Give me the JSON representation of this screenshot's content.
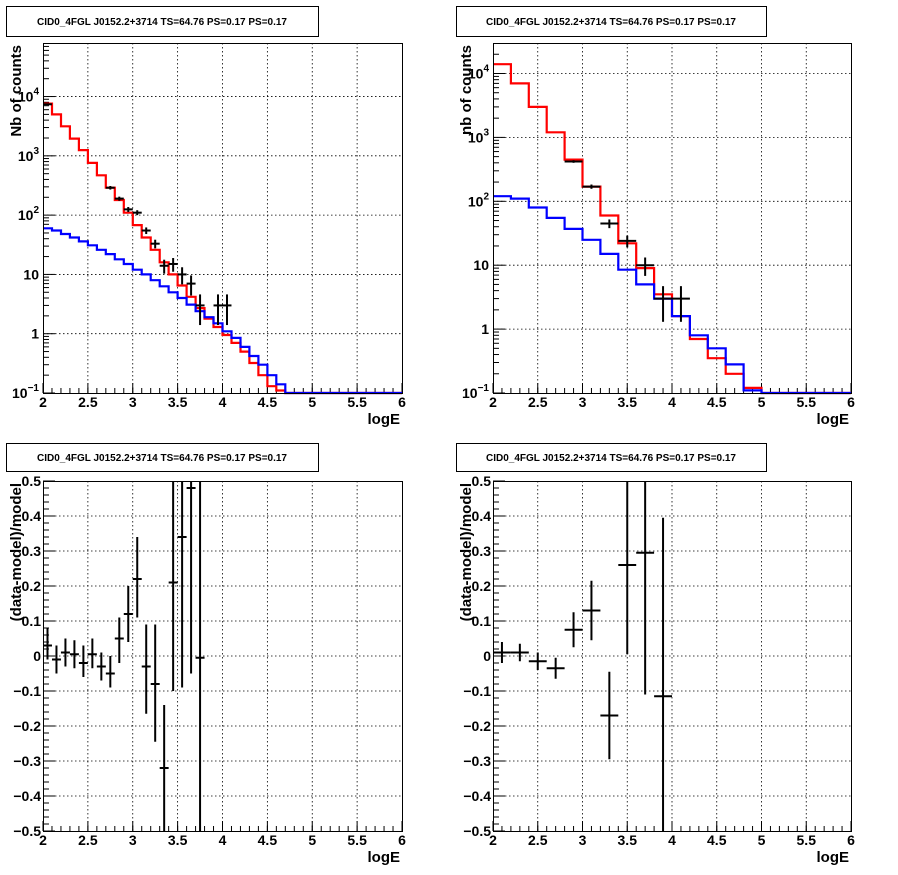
{
  "chart_data": [
    {
      "type": "line",
      "title": "CID0_4FGL J0152.2+3714 TS=64.76 PS=0.17 PS=0.17",
      "xlabel": "logE",
      "ylabel": "Nb of counts",
      "yscale": "log",
      "xlim": [
        2,
        6
      ],
      "ylim": [
        0.1,
        80000
      ],
      "grid": true,
      "xticks": [
        "2",
        "2.5",
        "3",
        "3.5",
        "4",
        "4.5",
        "5",
        "5.5",
        "6"
      ],
      "yticks": [
        {
          "v": 0.1,
          "base": "10",
          "exp": "−1"
        },
        {
          "v": 1,
          "label": "1"
        },
        {
          "v": 10,
          "label": "10"
        },
        {
          "v": 100,
          "base": "10",
          "exp": "2"
        },
        {
          "v": 1000,
          "base": "10",
          "exp": "3"
        },
        {
          "v": 10000,
          "base": "10",
          "exp": "4"
        }
      ],
      "bin_edges": [
        2.0,
        2.1,
        2.2,
        2.3,
        2.4,
        2.5,
        2.6,
        2.7,
        2.8,
        2.9,
        3.0,
        3.1,
        3.2,
        3.3,
        3.4,
        3.5,
        3.6,
        3.7,
        3.8,
        3.9,
        4.0,
        4.1,
        4.2,
        4.3,
        4.4,
        4.5,
        4.6,
        4.7,
        4.8,
        4.9,
        5.0,
        5.1,
        5.2,
        5.3,
        5.4,
        5.5,
        5.6,
        5.7,
        5.8,
        5.9,
        6.0
      ],
      "series": [
        {
          "color": "#ff0000",
          "values": [
            7600,
            5000,
            3150,
            1950,
            1250,
            760,
            470,
            290,
            180,
            110,
            68,
            42,
            26,
            16,
            10,
            6.5,
            4.2,
            2.7,
            1.8,
            1.3,
            0.95,
            0.7,
            0.5,
            0.32,
            0.2,
            0.13,
            0.11,
            0.1,
            0.1,
            0.1,
            0.1,
            0.1,
            0.1,
            0.1,
            0.1,
            0.1,
            0.1,
            0.1,
            0.1,
            0.1
          ]
        },
        {
          "color": "#0000ff",
          "values": [
            60,
            55,
            48,
            42,
            36,
            31,
            26,
            22,
            18,
            15,
            12,
            10,
            8,
            6.3,
            5,
            4,
            3.1,
            2.4,
            1.9,
            1.5,
            1.1,
            0.85,
            0.6,
            0.42,
            0.3,
            0.2,
            0.14,
            0.1,
            0.1,
            0.1,
            0.1,
            0.1,
            0.1,
            0.1,
            0.1,
            0.1,
            0.1,
            0.1,
            0.1,
            0.1
          ]
        }
      ],
      "data_points": [
        {
          "x": 2.05,
          "y": 7400,
          "lo": 7200,
          "hi": 7600
        },
        {
          "x": 2.75,
          "y": 290,
          "lo": 270,
          "hi": 310
        },
        {
          "x": 2.85,
          "y": 190,
          "lo": 175,
          "hi": 205
        },
        {
          "x": 2.95,
          "y": 125,
          "lo": 113,
          "hi": 137
        },
        {
          "x": 3.05,
          "y": 110,
          "lo": 100,
          "hi": 121
        },
        {
          "x": 3.15,
          "y": 55,
          "lo": 48,
          "hi": 62
        },
        {
          "x": 3.25,
          "y": 33,
          "lo": 27.5,
          "hi": 38.5
        },
        {
          "x": 3.35,
          "y": 14,
          "lo": 10.3,
          "hi": 17.7
        },
        {
          "x": 3.45,
          "y": 15,
          "lo": 11.1,
          "hi": 18.9
        },
        {
          "x": 3.55,
          "y": 10,
          "lo": 6.8,
          "hi": 13.2
        },
        {
          "x": 3.65,
          "y": 7,
          "lo": 4.4,
          "hi": 9.6
        },
        {
          "x": 3.75,
          "y": 3,
          "lo": 1.4,
          "hi": 4.6
        },
        {
          "x": 3.95,
          "y": 3,
          "lo": 1.4,
          "hi": 4.6
        },
        {
          "x": 4.05,
          "y": 3,
          "lo": 1.4,
          "hi": 4.6
        }
      ]
    },
    {
      "type": "line",
      "title": "CID0_4FGL J0152.2+3714 TS=64.76 PS=0.17 PS=0.17",
      "xlabel": "logE",
      "ylabel": "nb of counts",
      "yscale": "log",
      "xlim": [
        2,
        6
      ],
      "ylim": [
        0.1,
        30000
      ],
      "grid": true,
      "xticks": [
        "2",
        "2.5",
        "3",
        "3.5",
        "4",
        "4.5",
        "5",
        "5.5",
        "6"
      ],
      "yticks": [
        {
          "v": 0.1,
          "base": "10",
          "exp": "−1"
        },
        {
          "v": 1,
          "label": "1"
        },
        {
          "v": 10,
          "label": "10"
        },
        {
          "v": 100,
          "base": "10",
          "exp": "2"
        },
        {
          "v": 1000,
          "base": "10",
          "exp": "3"
        },
        {
          "v": 10000,
          "base": "10",
          "exp": "4"
        }
      ],
      "bin_edges": [
        2.0,
        2.2,
        2.4,
        2.6,
        2.8,
        3.0,
        3.2,
        3.4,
        3.6,
        3.8,
        4.0,
        4.2,
        4.4,
        4.6,
        4.8,
        5.0,
        5.2,
        5.4,
        5.6,
        5.8,
        6.0
      ],
      "series": [
        {
          "color": "#ff0000",
          "values": [
            14000,
            7000,
            3000,
            1200,
            450,
            170,
            60,
            22,
            9,
            3.5,
            1.6,
            0.7,
            0.35,
            0.2,
            0.12,
            0.1,
            0.1,
            0.1,
            0.1,
            0.1
          ]
        },
        {
          "color": "#0000ff",
          "values": [
            120,
            110,
            80,
            55,
            37,
            25,
            15,
            8.5,
            5,
            3,
            1.6,
            0.8,
            0.5,
            0.28,
            0.11,
            0.1,
            0.1,
            0.1,
            0.1,
            0.1
          ]
        }
      ],
      "data_points": [
        {
          "x": 2.9,
          "y": 420,
          "lo": 400,
          "hi": 440
        },
        {
          "x": 3.1,
          "y": 170,
          "lo": 157,
          "hi": 183
        },
        {
          "x": 3.3,
          "y": 45,
          "lo": 38,
          "hi": 52
        },
        {
          "x": 3.5,
          "y": 24,
          "lo": 19,
          "hi": 29
        },
        {
          "x": 3.7,
          "y": 10,
          "lo": 6.8,
          "hi": 13.2
        },
        {
          "x": 3.9,
          "y": 3,
          "lo": 1.3,
          "hi": 4.7
        },
        {
          "x": 4.1,
          "y": 3,
          "lo": 1.3,
          "hi": 4.7
        }
      ]
    },
    {
      "type": "scatter",
      "title": "CID0_4FGL J0152.2+3714 TS=64.76 PS=0.17 PS=0.17",
      "xlabel": "logE",
      "ylabel": "(data-model)/model",
      "xlim": [
        2,
        6
      ],
      "ylim": [
        -0.5,
        0.5
      ],
      "grid": true,
      "xticks": [
        "2",
        "2.5",
        "3",
        "3.5",
        "4",
        "4.5",
        "5",
        "5.5",
        "6"
      ],
      "yticks": [
        "−0.5",
        "−0.4",
        "−0.3",
        "−0.2",
        "−0.1",
        "0",
        "0.1",
        "0.2",
        "0.3",
        "0.4",
        "0.5"
      ],
      "points": [
        {
          "x": 2.05,
          "y": 0.03,
          "lo": -0.01,
          "hi": 0.08
        },
        {
          "x": 2.15,
          "y": -0.01,
          "lo": -0.05,
          "hi": 0.03
        },
        {
          "x": 2.25,
          "y": 0.01,
          "lo": -0.03,
          "hi": 0.05
        },
        {
          "x": 2.35,
          "y": 0.005,
          "lo": -0.035,
          "hi": 0.045
        },
        {
          "x": 2.45,
          "y": -0.02,
          "lo": -0.06,
          "hi": 0.03
        },
        {
          "x": 2.55,
          "y": 0.005,
          "lo": -0.035,
          "hi": 0.05
        },
        {
          "x": 2.65,
          "y": -0.03,
          "lo": -0.07,
          "hi": 0.01
        },
        {
          "x": 2.75,
          "y": -0.05,
          "lo": -0.09,
          "hi": 0.0
        },
        {
          "x": 2.85,
          "y": 0.05,
          "lo": -0.02,
          "hi": 0.11
        },
        {
          "x": 2.95,
          "y": 0.12,
          "lo": 0.04,
          "hi": 0.2
        },
        {
          "x": 3.05,
          "y": 0.22,
          "lo": 0.11,
          "hi": 0.34
        },
        {
          "x": 3.15,
          "y": -0.03,
          "lo": -0.165,
          "hi": 0.09
        },
        {
          "x": 3.25,
          "y": -0.08,
          "lo": -0.245,
          "hi": 0.09
        },
        {
          "x": 3.35,
          "y": -0.32,
          "lo": -0.5,
          "hi": -0.14
        },
        {
          "x": 3.45,
          "y": 0.21,
          "lo": -0.1,
          "hi": 0.5
        },
        {
          "x": 3.55,
          "y": 0.34,
          "lo": -0.09,
          "hi": 0.5
        },
        {
          "x": 3.65,
          "y": 0.48,
          "lo": -0.05,
          "hi": 0.5
        },
        {
          "x": 3.75,
          "y": -0.005,
          "lo": -0.5,
          "hi": 0.5
        }
      ]
    },
    {
      "type": "scatter",
      "title": "CID0_4FGL J0152.2+3714 TS=64.76 PS=0.17 PS=0.17",
      "xlabel": "logE",
      "ylabel": "(data-model)/model",
      "xlim": [
        2,
        6
      ],
      "ylim": [
        -0.5,
        0.5
      ],
      "grid": true,
      "xticks": [
        "2",
        "2.5",
        "3",
        "3.5",
        "4",
        "4.5",
        "5",
        "5.5",
        "6"
      ],
      "yticks": [
        "−0.5",
        "−0.4",
        "−0.3",
        "−0.2",
        "−0.1",
        "0",
        "0.1",
        "0.2",
        "0.3",
        "0.4",
        "0.5"
      ],
      "points": [
        {
          "x": 2.1,
          "y": 0.01,
          "lo": -0.02,
          "hi": 0.04
        },
        {
          "x": 2.3,
          "y": 0.01,
          "lo": -0.015,
          "hi": 0.035
        },
        {
          "x": 2.5,
          "y": -0.015,
          "lo": -0.04,
          "hi": 0.01
        },
        {
          "x": 2.7,
          "y": -0.035,
          "lo": -0.065,
          "hi": -0.005
        },
        {
          "x": 2.9,
          "y": 0.075,
          "lo": 0.025,
          "hi": 0.125
        },
        {
          "x": 3.1,
          "y": 0.13,
          "lo": 0.045,
          "hi": 0.215
        },
        {
          "x": 3.3,
          "y": -0.17,
          "lo": -0.295,
          "hi": -0.045
        },
        {
          "x": 3.5,
          "y": 0.26,
          "lo": 0.005,
          "hi": 0.5
        },
        {
          "x": 3.7,
          "y": 0.295,
          "lo": -0.11,
          "hi": 0.5
        },
        {
          "x": 3.9,
          "y": -0.115,
          "lo": -0.5,
          "hi": 0.395
        }
      ]
    }
  ]
}
